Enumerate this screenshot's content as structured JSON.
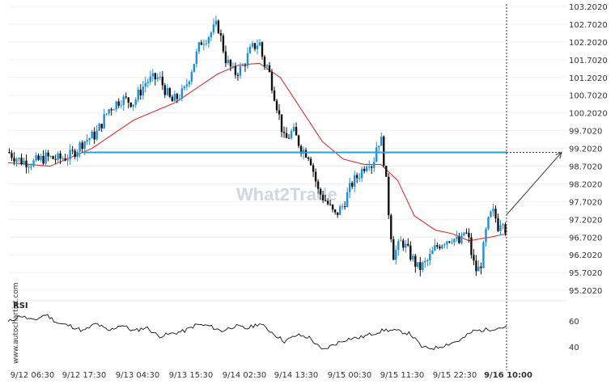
{
  "watermark": "What2Trade",
  "side_text": "www.autochartist.com",
  "chart_data": {
    "type": "candlestick",
    "price_axis": {
      "ticks": [
        "103.2020",
        "102.7020",
        "102.2020",
        "101.7020",
        "101.2020",
        "100.7020",
        "100.2020",
        "99.7020",
        "99.2020",
        "98.7020",
        "98.2020",
        "97.7020",
        "97.2020",
        "96.7020",
        "96.2020",
        "95.7020",
        "95.2020"
      ],
      "ylim": [
        95.0,
        103.27
      ]
    },
    "time_axis": {
      "ticks": [
        "9/12 06:30",
        "9/12 17:30",
        "9/13 04:30",
        "9/13 15:30",
        "9/14 02:30",
        "9/14 13:30",
        "9/15 00:30",
        "9/15 11:30",
        "9/15 22:30",
        "9/16 10:00"
      ],
      "highlight": "9/16 10:00"
    },
    "level_line": {
      "value": 99.09,
      "color": "#2aa0d8"
    },
    "projection": {
      "from_value": 97.33,
      "to_value": 99.09
    },
    "colors": {
      "bull": "#1f8fd8",
      "bear": "#111111",
      "ma": "#e53030",
      "rsi": "#111111"
    },
    "close_path": [
      {
        "t": 0.0,
        "v": 99.1
      },
      {
        "t": 0.3,
        "v": 98.85
      },
      {
        "t": 0.6,
        "v": 98.8
      },
      {
        "t": 0.9,
        "v": 98.95
      },
      {
        "t": 1.2,
        "v": 98.9
      },
      {
        "t": 1.5,
        "v": 99.0
      },
      {
        "t": 1.8,
        "v": 99.4
      },
      {
        "t": 2.1,
        "v": 99.6
      },
      {
        "t": 2.4,
        "v": 100.3
      },
      {
        "t": 2.7,
        "v": 100.6
      },
      {
        "t": 3.0,
        "v": 100.5
      },
      {
        "t": 3.3,
        "v": 101.1
      },
      {
        "t": 3.6,
        "v": 101.2
      },
      {
        "t": 3.9,
        "v": 100.5
      },
      {
        "t": 4.0,
        "v": 100.6
      },
      {
        "t": 4.2,
        "v": 100.8
      },
      {
        "t": 4.4,
        "v": 101.5
      },
      {
        "t": 4.6,
        "v": 102.2
      },
      {
        "t": 4.8,
        "v": 102.4
      },
      {
        "t": 5.0,
        "v": 102.7
      },
      {
        "t": 5.2,
        "v": 101.7
      },
      {
        "t": 5.4,
        "v": 101.3
      },
      {
        "t": 5.6,
        "v": 101.5
      },
      {
        "t": 5.8,
        "v": 102.0
      },
      {
        "t": 6.0,
        "v": 102.2
      },
      {
        "t": 6.1,
        "v": 101.6
      },
      {
        "t": 6.2,
        "v": 101.5
      },
      {
        "t": 6.4,
        "v": 100.5
      },
      {
        "t": 6.6,
        "v": 99.4
      },
      {
        "t": 6.8,
        "v": 99.7
      },
      {
        "t": 7.0,
        "v": 99.2
      },
      {
        "t": 7.2,
        "v": 99.0
      },
      {
        "t": 7.4,
        "v": 98.0
      },
      {
        "t": 7.6,
        "v": 97.7
      },
      {
        "t": 7.8,
        "v": 97.3
      },
      {
        "t": 8.0,
        "v": 97.6
      },
      {
        "t": 8.2,
        "v": 98.2
      },
      {
        "t": 8.4,
        "v": 98.5
      },
      {
        "t": 8.6,
        "v": 98.9
      },
      {
        "t": 8.7,
        "v": 98.7
      },
      {
        "t": 8.8,
        "v": 99.3
      },
      {
        "t": 8.9,
        "v": 99.5
      },
      {
        "t": 9.0,
        "v": 98.6
      },
      {
        "t": 9.1,
        "v": 97.2
      },
      {
        "t": 9.2,
        "v": 96.2
      },
      {
        "t": 9.4,
        "v": 96.6
      },
      {
        "t": 9.6,
        "v": 96.2
      },
      {
        "t": 9.8,
        "v": 95.8
      },
      {
        "t": 10.0,
        "v": 96.0
      },
      {
        "t": 10.2,
        "v": 96.4
      },
      {
        "t": 10.4,
        "v": 96.6
      },
      {
        "t": 10.6,
        "v": 96.7
      },
      {
        "t": 10.8,
        "v": 96.5
      },
      {
        "t": 10.9,
        "v": 96.9
      },
      {
        "t": 11.0,
        "v": 96.6
      },
      {
        "t": 11.1,
        "v": 96.0
      },
      {
        "t": 11.2,
        "v": 95.7
      },
      {
        "t": 11.3,
        "v": 96.0
      },
      {
        "t": 11.4,
        "v": 96.8
      },
      {
        "t": 11.5,
        "v": 97.3
      },
      {
        "t": 11.6,
        "v": 97.4
      },
      {
        "t": 11.7,
        "v": 97.0
      },
      {
        "t": 11.8,
        "v": 97.3
      },
      {
        "t": 11.9,
        "v": 96.8
      }
    ],
    "ma_path": [
      {
        "t": 0.0,
        "v": 98.8
      },
      {
        "t": 1.0,
        "v": 98.7
      },
      {
        "t": 2.0,
        "v": 99.2
      },
      {
        "t": 3.0,
        "v": 100.0
      },
      {
        "t": 4.0,
        "v": 100.5
      },
      {
        "t": 5.0,
        "v": 101.3
      },
      {
        "t": 5.5,
        "v": 101.55
      },
      {
        "t": 6.0,
        "v": 101.6
      },
      {
        "t": 6.5,
        "v": 101.2
      },
      {
        "t": 7.0,
        "v": 100.3
      },
      {
        "t": 7.5,
        "v": 99.4
      },
      {
        "t": 8.0,
        "v": 98.9
      },
      {
        "t": 8.5,
        "v": 98.75
      },
      {
        "t": 8.9,
        "v": 98.75
      },
      {
        "t": 9.3,
        "v": 98.3
      },
      {
        "t": 9.7,
        "v": 97.3
      },
      {
        "t": 10.2,
        "v": 96.9
      },
      {
        "t": 10.6,
        "v": 96.8
      },
      {
        "t": 11.0,
        "v": 96.6
      },
      {
        "t": 11.5,
        "v": 96.7
      },
      {
        "t": 11.9,
        "v": 96.8
      }
    ],
    "rsi": {
      "label": "RSI",
      "ticks": [
        "60",
        "40"
      ],
      "ylim": [
        33,
        73
      ],
      "path": [
        {
          "t": 0.0,
          "v": 59
        },
        {
          "t": 0.3,
          "v": 64
        },
        {
          "t": 0.6,
          "v": 60
        },
        {
          "t": 0.9,
          "v": 65
        },
        {
          "t": 1.2,
          "v": 58
        },
        {
          "t": 1.5,
          "v": 56
        },
        {
          "t": 1.8,
          "v": 52
        },
        {
          "t": 2.1,
          "v": 58
        },
        {
          "t": 2.4,
          "v": 52
        },
        {
          "t": 2.7,
          "v": 57
        },
        {
          "t": 3.0,
          "v": 52
        },
        {
          "t": 3.3,
          "v": 55
        },
        {
          "t": 3.6,
          "v": 48
        },
        {
          "t": 3.9,
          "v": 50
        },
        {
          "t": 4.2,
          "v": 52
        },
        {
          "t": 4.5,
          "v": 57
        },
        {
          "t": 4.8,
          "v": 56
        },
        {
          "t": 5.1,
          "v": 52
        },
        {
          "t": 5.4,
          "v": 56
        },
        {
          "t": 5.7,
          "v": 54
        },
        {
          "t": 6.0,
          "v": 58
        },
        {
          "t": 6.3,
          "v": 51
        },
        {
          "t": 6.6,
          "v": 44
        },
        {
          "t": 6.9,
          "v": 49
        },
        {
          "t": 7.2,
          "v": 47
        },
        {
          "t": 7.5,
          "v": 37
        },
        {
          "t": 7.8,
          "v": 42
        },
        {
          "t": 8.1,
          "v": 46
        },
        {
          "t": 8.4,
          "v": 47
        },
        {
          "t": 8.7,
          "v": 50
        },
        {
          "t": 9.0,
          "v": 53
        },
        {
          "t": 9.3,
          "v": 52
        },
        {
          "t": 9.6,
          "v": 50
        },
        {
          "t": 9.9,
          "v": 39
        },
        {
          "t": 10.2,
          "v": 39
        },
        {
          "t": 10.5,
          "v": 42
        },
        {
          "t": 10.8,
          "v": 45
        },
        {
          "t": 11.1,
          "v": 52
        },
        {
          "t": 11.4,
          "v": 53
        },
        {
          "t": 11.6,
          "v": 54
        },
        {
          "t": 11.8,
          "v": 55
        }
      ]
    }
  }
}
